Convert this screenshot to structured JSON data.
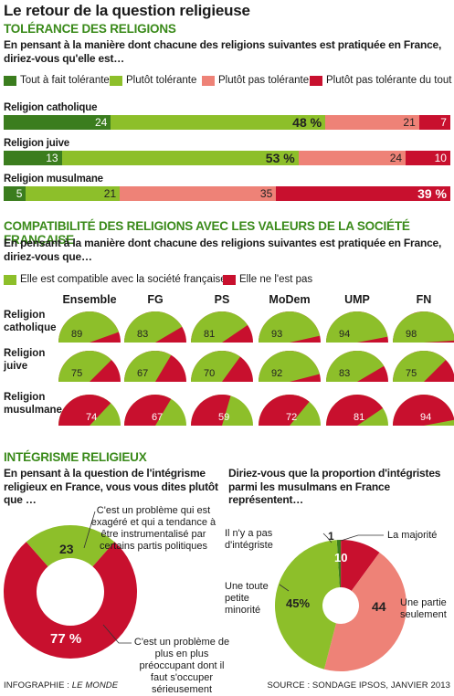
{
  "title": "Le retour de la question religieuse",
  "tolerance": {
    "heading": "TOLÉRANCE DES RELIGIONS",
    "question": "En pensant à la manière dont chacune des religions suivantes est pratiquée en France, diriez-vous qu'elle est…",
    "legend": [
      "Tout à fait tolérante",
      "Plutôt tolérante",
      "Plutôt pas tolérante",
      "Plutôt pas tolérante du tout"
    ],
    "colors": [
      "#3b7d1e",
      "#8dbf2a",
      "#ee8277",
      "#c8102e"
    ]
  },
  "compat": {
    "heading": "COMPATIBILITÉ DES RELIGIONS AVEC LES VALEURS DE LA SOCIÉTÉ FRANÇAISE",
    "question": "En pensant à la manière dont chacune des religions suivantes est pratiquée en France, diriez-vous que…",
    "legend": [
      "Elle est compatible avec la société française",
      "Elle ne l'est pas"
    ],
    "colors": [
      "#8dbf2a",
      "#c8102e"
    ]
  },
  "integrisme": {
    "heading": "INTÉGRISME RELIGIEUX",
    "q1": "En pensant à la question de l'intégrisme religieux en France, vous vous dites plutôt que …",
    "q1_green_note": "C'est un problème qui est exagéré et qui a tendance à être instrumentalisé par certains partis politiques",
    "q1_red_note": "C'est un problème de plus en plus préoccupant dont il faut s'occuper sérieusement",
    "q2": "Diriez-vous que la proportion d'intégristes parmi les musulmans en France représentent…",
    "q2_notes": [
      "Il n'y a pas d'intégriste",
      "La majorité",
      "Une toute petite minorité",
      "Une partie seulement"
    ]
  },
  "footer": {
    "left_prefix": "INFOGRAPHIE : ",
    "left_source": "LE MONDE",
    "right": "SOURCE : SONDAGE IPSOS, JANVIER 2013"
  },
  "chart_data": [
    {
      "type": "bar",
      "orientation": "horizontal-stacked-100",
      "title": "TOLÉRANCE DES RELIGIONS",
      "categories": [
        "Religion catholique",
        "Religion juive",
        "Religion musulmane"
      ],
      "series": [
        {
          "name": "Tout à fait tolérante",
          "values": [
            24,
            13,
            5
          ],
          "labels": [
            "24",
            "13",
            "5"
          ]
        },
        {
          "name": "Plutôt tolérante",
          "values": [
            48,
            53,
            21
          ],
          "labels": [
            "48 %",
            "53 %",
            "21"
          ]
        },
        {
          "name": "Plutôt pas tolérante",
          "values": [
            21,
            24,
            35
          ],
          "labels": [
            "21",
            "24",
            "35"
          ]
        },
        {
          "name": "Plutôt pas tolérante du tout",
          "values": [
            7,
            10,
            39
          ],
          "labels": [
            "7",
            "10",
            "39 %"
          ]
        }
      ]
    },
    {
      "type": "pie",
      "title": "COMPATIBILITÉ DES RELIGIONS AVEC LES VALEURS DE LA SOCIÉTÉ FRANÇAISE",
      "columns": [
        "Ensemble",
        "FG",
        "PS",
        "MoDem",
        "UMP",
        "FN"
      ],
      "rows": [
        {
          "label": [
            "Religion",
            "catholique"
          ],
          "compatible": [
            89,
            83,
            81,
            93,
            94,
            98
          ]
        },
        {
          "label": [
            "Religion",
            "juive"
          ],
          "compatible": [
            75,
            67,
            70,
            92,
            83,
            75
          ]
        },
        {
          "label": [
            "Religion",
            "musulmane"
          ],
          "not_compatible": [
            74,
            67,
            59,
            72,
            81,
            94
          ]
        }
      ]
    },
    {
      "type": "pie",
      "style": "donut",
      "title": "INTÉGRISME RELIGIEUX",
      "slices": [
        {
          "label": "23",
          "value": 23
        },
        {
          "label": "77 %",
          "value": 77
        }
      ]
    },
    {
      "type": "pie",
      "style": "donut",
      "slices": [
        {
          "label": "1",
          "value": 1
        },
        {
          "label": "10",
          "value": 10
        },
        {
          "label": "44",
          "value": 44
        },
        {
          "label": "45%",
          "value": 45
        }
      ]
    }
  ]
}
